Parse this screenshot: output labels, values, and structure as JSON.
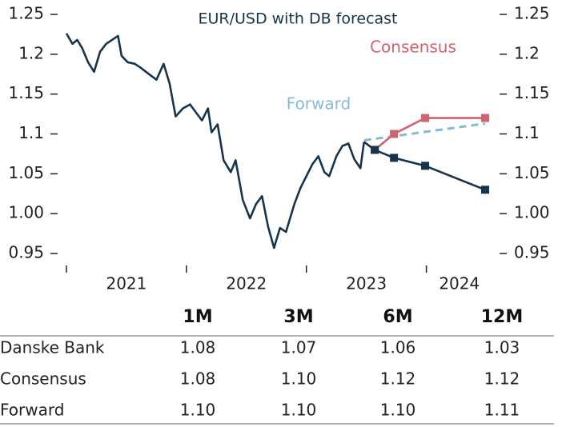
{
  "chart_data": {
    "type": "line",
    "title": "EUR/USD with DB forecast",
    "xlim": [
      2021,
      2024.55
    ],
    "xticks": [
      2021,
      2022,
      2023,
      2024
    ],
    "ylim": [
      0.95,
      1.25
    ],
    "yticks": [
      1.25,
      1.2,
      1.15,
      1.1,
      1.05,
      {
        "value": 1.0,
        "label": "1.00"
      },
      0.95
    ],
    "series": [
      {
        "color": "#17344f",
        "x": [
          2021.0,
          2021.05,
          2021.09,
          2021.13,
          2021.18,
          2021.23,
          2021.28,
          2021.33,
          2021.38,
          2021.43,
          2021.46,
          2021.51,
          2021.57,
          2021.62,
          2021.68,
          2021.75,
          2021.81,
          2021.86,
          2021.91,
          2021.97,
          2022.03,
          2022.08,
          2022.13,
          2022.18,
          2022.21,
          2022.26,
          2022.31,
          2022.37,
          2022.41,
          2022.47,
          2022.53,
          2022.58,
          2022.63,
          2022.68,
          2022.73,
          2022.78,
          2022.83,
          2022.86,
          2022.9,
          2022.95,
          2023.0,
          2023.05,
          2023.1,
          2023.15,
          2023.19,
          2023.25,
          2023.3,
          2023.35,
          2023.4,
          2023.45,
          2023.48
        ],
        "values": [
          1.226,
          1.213,
          1.218,
          1.208,
          1.19,
          1.178,
          1.203,
          1.213,
          1.218,
          1.223,
          1.198,
          1.19,
          1.188,
          1.183,
          1.176,
          1.168,
          1.188,
          1.163,
          1.122,
          1.132,
          1.137,
          1.127,
          1.117,
          1.132,
          1.102,
          1.112,
          1.067,
          1.052,
          1.067,
          1.017,
          0.994,
          1.012,
          1.022,
          0.984,
          0.957,
          0.982,
          0.977,
          0.992,
          1.012,
          1.032,
          1.047,
          1.062,
          1.072,
          1.052,
          1.047,
          1.072,
          1.085,
          1.088,
          1.068,
          1.057,
          1.09
        ]
      },
      {
        "name": "Forward",
        "color": "#86bcd1",
        "dashed": true,
        "x": [
          2023.48,
          2024.49
        ],
        "values": [
          1.092,
          1.113
        ]
      },
      {
        "name": "Consensus",
        "color": "#d0636e",
        "marker": "square",
        "x": [
          2023.48,
          2023.57,
          2023.73,
          2023.99,
          2024.49
        ],
        "values": [
          1.09,
          1.08,
          1.1,
          1.12,
          1.12
        ]
      },
      {
        "color": "#17344f",
        "marker": "square",
        "x": [
          2023.48,
          2023.57,
          2023.73,
          2023.99,
          2024.49
        ],
        "values": [
          1.09,
          1.08,
          1.07,
          1.06,
          1.03
        ]
      }
    ]
  },
  "table": {
    "header": [
      "1M",
      "3M",
      "6M",
      "12M"
    ],
    "rows": [
      {
        "label": "Danske Bank",
        "values": [
          "1.08",
          "1.07",
          "1.06",
          "1.03"
        ]
      },
      {
        "label": "Consensus",
        "values": [
          "1.08",
          "1.10",
          "1.12",
          "1.12"
        ]
      },
      {
        "label": "Forward",
        "values": [
          "1.10",
          "1.10",
          "1.10",
          "1.11"
        ]
      }
    ]
  }
}
